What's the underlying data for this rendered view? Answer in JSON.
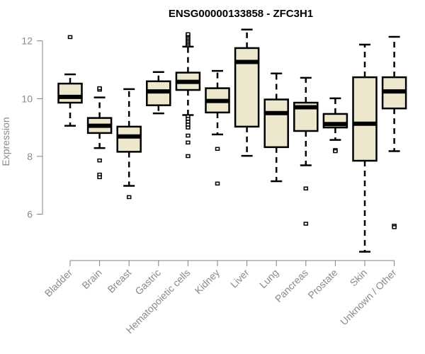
{
  "chart_data": {
    "type": "box",
    "title": "ENSG00000133858 - ZFC3H1",
    "xlabel": "",
    "ylabel": "Expression",
    "ylim": [
      4.5,
      12.5
    ],
    "yticks": [
      6,
      8,
      10,
      12
    ],
    "grid": false,
    "box_color": "#ede8cd",
    "categories": [
      "Bladder",
      "Brain",
      "Breast",
      "Gastric",
      "Hematopoietic cells",
      "Kidney",
      "Liver",
      "Lung",
      "Pancreas",
      "Prostate",
      "Skin",
      "Unknown / Other"
    ],
    "boxes": [
      {
        "whisker_low": 9.06,
        "q1": 9.86,
        "median": 10.06,
        "q3": 10.52,
        "whisker_high": 10.84,
        "outliers": [
          12.13
        ]
      },
      {
        "whisker_low": 8.29,
        "q1": 8.81,
        "median": 9.06,
        "q3": 9.33,
        "whisker_high": 10.04,
        "outliers": [
          10.31,
          10.36,
          7.86,
          7.37,
          7.28
        ]
      },
      {
        "whisker_low": 6.98,
        "q1": 8.16,
        "median": 8.69,
        "q3": 9.03,
        "whisker_high": 10.33,
        "outliers": [
          6.59
        ]
      },
      {
        "whisker_low": 9.49,
        "q1": 9.77,
        "median": 10.25,
        "q3": 10.6,
        "whisker_high": 10.92,
        "outliers": []
      },
      {
        "whisker_low": 9.43,
        "q1": 10.3,
        "median": 10.58,
        "q3": 10.9,
        "whisker_high": 11.8,
        "outliers": [
          11.85,
          11.9,
          11.95,
          12.0,
          12.05,
          12.1,
          12.15,
          12.2,
          12.23,
          9.38,
          9.3,
          9.2,
          9.1,
          9.0,
          8.72,
          8.48,
          8.01
        ]
      },
      {
        "whisker_low": 8.76,
        "q1": 9.52,
        "median": 9.92,
        "q3": 10.36,
        "whisker_high": 10.96,
        "outliers": [
          8.26,
          7.06
        ]
      },
      {
        "whisker_low": 8.02,
        "q1": 9.03,
        "median": 11.27,
        "q3": 11.75,
        "whisker_high": 12.39,
        "outliers": []
      },
      {
        "whisker_low": 7.14,
        "q1": 8.32,
        "median": 9.5,
        "q3": 9.97,
        "whisker_high": 10.87,
        "outliers": []
      },
      {
        "whisker_low": 7.69,
        "q1": 8.88,
        "median": 9.7,
        "q3": 9.86,
        "whisker_high": 10.72,
        "outliers": [
          6.89,
          5.67
        ]
      },
      {
        "whisker_low": 8.57,
        "q1": 9.0,
        "median": 9.12,
        "q3": 9.47,
        "whisker_high": 10.01,
        "outliers": [
          8.22,
          8.18
        ]
      },
      {
        "whisker_low": 4.7,
        "q1": 7.85,
        "median": 9.13,
        "q3": 10.74,
        "whisker_high": 11.87,
        "outliers": []
      },
      {
        "whisker_low": 8.18,
        "q1": 9.66,
        "median": 10.25,
        "q3": 10.74,
        "whisker_high": 12.14,
        "outliers": [
          5.6,
          5.55
        ]
      }
    ]
  }
}
